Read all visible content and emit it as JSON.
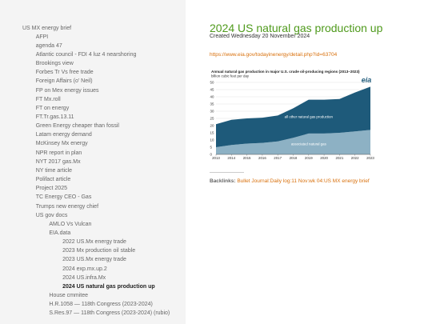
{
  "sidebar": {
    "items": [
      {
        "label": "US MX energy brief",
        "children": [
          {
            "label": "AFPI"
          },
          {
            "label": "agenda 47"
          },
          {
            "label": "Atlantic council - FDI 4 luz 4 nearshoring"
          },
          {
            "label": "Brookings view"
          },
          {
            "label": "Forbes Tr Vs free trade"
          },
          {
            "label": "Foreign Affairs (o' Neil)"
          },
          {
            "label": "FP on Mex energy issues"
          },
          {
            "label": "FT Mx.roll"
          },
          {
            "label": "FT on energy"
          },
          {
            "label": "FT.Tr.gas.13.11"
          },
          {
            "label": "Green Energy cheaper than fossil"
          },
          {
            "label": "Latam energy demand"
          },
          {
            "label": "McKinsey Mx energy"
          },
          {
            "label": "NPR report in plan"
          },
          {
            "label": "NYT 2017 gas.Mx"
          },
          {
            "label": "NY time article"
          },
          {
            "label": "Polifact article"
          },
          {
            "label": "Project 2025"
          },
          {
            "label": "TC Energy CEO - Gas"
          },
          {
            "label": "Trumps new energy chief"
          },
          {
            "label": "US gov docs",
            "children": [
              {
                "label": "AMLO Vs Vulcan"
              },
              {
                "label": "EIA.data",
                "children": [
                  {
                    "label": "2022 US.Mx energy trade"
                  },
                  {
                    "label": "2023 Mx production oil stable"
                  },
                  {
                    "label": "2023 US.Mx energy trade"
                  },
                  {
                    "label": "2024 exp.mx.up.2"
                  },
                  {
                    "label": "2024 US.infra.Mx"
                  },
                  {
                    "label": "2024 US natural gas production up",
                    "selected": true
                  }
                ]
              },
              {
                "label": "House cmmitee"
              },
              {
                "label": "H.R.1058 — 118th Congress (2023-2024)"
              },
              {
                "label": "S.Res.97 — 118th Congress (2023-2024) (rubio)"
              }
            ]
          }
        ]
      }
    ]
  },
  "main": {
    "title": "2024 US natural gas production up",
    "created": "Created Wednesday 20 November 2024",
    "link": "https://www.eia.gov/todayinenergy/detail.php?id=63704",
    "backlinks_label": "Backlinks:",
    "backlink": "Bullet Journal:Daily log:11 Nov:wk 04:US MX energy brief"
  },
  "chart_data": {
    "type": "stacked-area",
    "title": "Annual natural gas production in major U.S. crude oil-producing regions (2013–2023)",
    "subtitle": "billion cubic feet per day",
    "logo": "eia",
    "x": [
      2013,
      2014,
      2015,
      2016,
      2017,
      2018,
      2019,
      2020,
      2021,
      2022,
      2023
    ],
    "xlim": [
      2013,
      2023
    ],
    "xticks": [
      2013,
      2014,
      2015,
      2016,
      2017,
      2018,
      2019,
      2020,
      2021,
      2022,
      2023
    ],
    "ylim": [
      0,
      50
    ],
    "yticks": [
      0,
      5,
      10,
      15,
      20,
      25,
      30,
      35,
      40,
      45,
      50
    ],
    "series": [
      {
        "name": "associated natural gas",
        "color": "#8db1c4",
        "values": [
          5,
          6.5,
          7.5,
          8,
          9,
          11.5,
          14.5,
          14.5,
          15,
          16,
          17
        ]
      },
      {
        "name": "all other natural gas production",
        "color": "#1e5a7a",
        "values": [
          16,
          17.5,
          17.5,
          17.5,
          18,
          20.5,
          23.5,
          23.5,
          23.5,
          27,
          30
        ]
      }
    ]
  }
}
